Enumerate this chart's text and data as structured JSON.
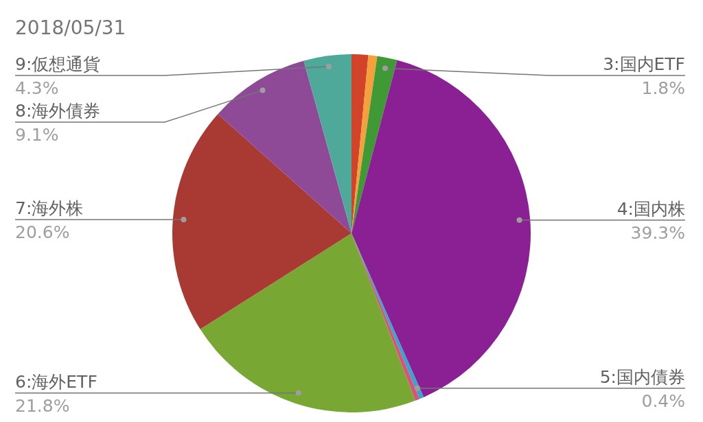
{
  "chart_data": {
    "type": "pie",
    "title": "2018/05/31",
    "categories": [
      null,
      null,
      "3:国内ETF",
      "4:国内株",
      "5:国内債券",
      null,
      "6:海外ETF",
      "7:海外株",
      "8:海外債券",
      "9:仮想通貨"
    ],
    "values": [
      1.5,
      0.8,
      1.8,
      39.3,
      0.4,
      0.4,
      21.8,
      20.6,
      9.1,
      4.3
    ],
    "value_labels": [
      null,
      null,
      "1.8%",
      "39.3%",
      "0.4%",
      null,
      "21.8%",
      "20.6%",
      "9.1%",
      "4.3%"
    ],
    "colors": [
      "#d1442a",
      "#f4a03c",
      "#3f9a36",
      "#8b2094",
      "#3ba3d0",
      "#d8527a",
      "#78a734",
      "#a83a33",
      "#8f4a97",
      "#4fa99b"
    ]
  }
}
